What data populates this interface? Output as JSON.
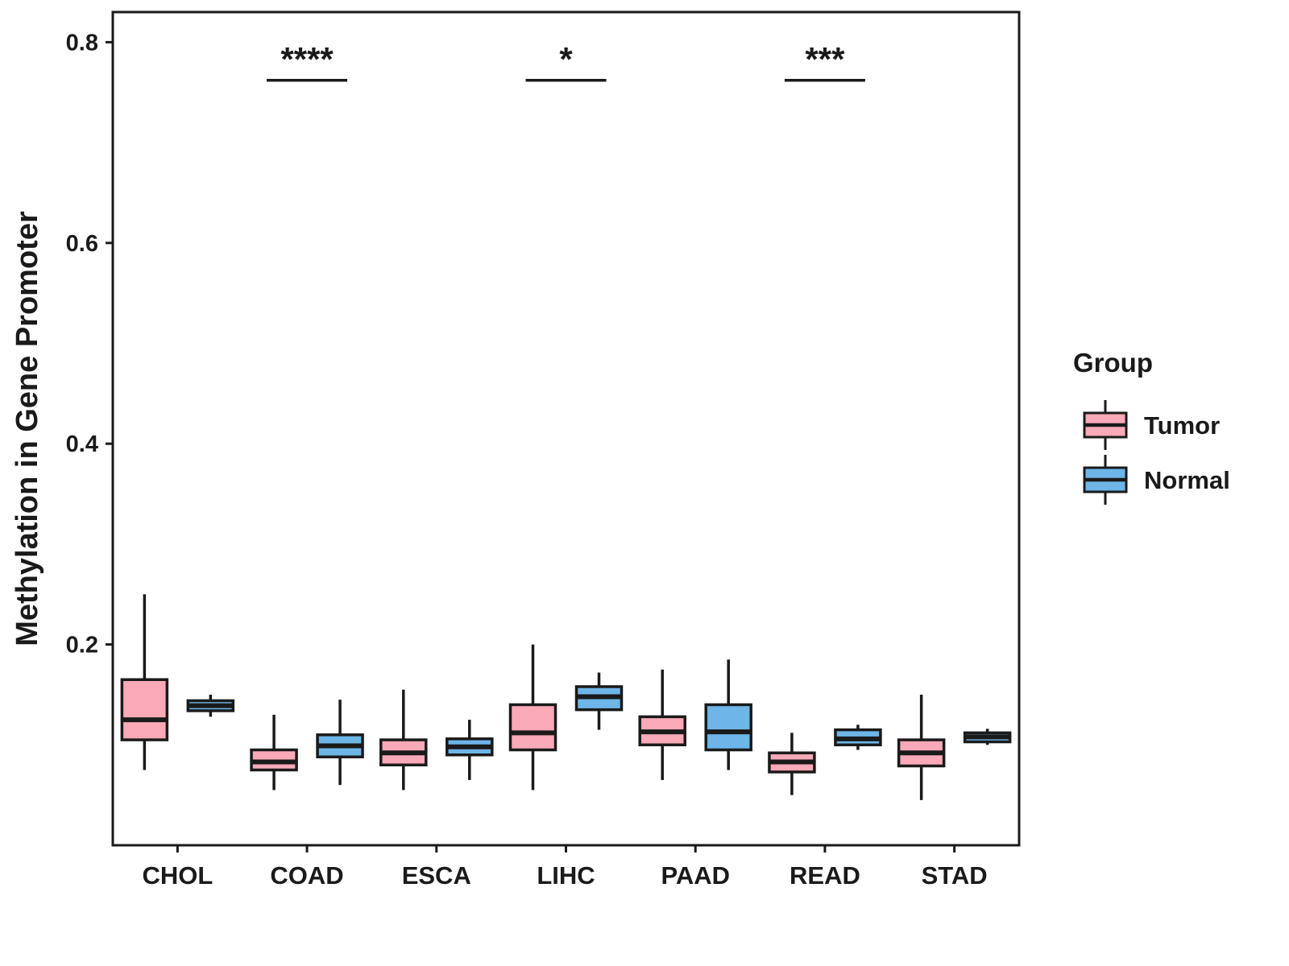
{
  "chart_data": {
    "type": "boxplot",
    "title": "",
    "xlabel": "",
    "ylabel": "Methylation in Gene Promoter",
    "ylim": [
      0.0,
      0.83
    ],
    "yticks": [
      0.2,
      0.4,
      0.6,
      0.8
    ],
    "grid": false,
    "panel_border": true,
    "categories": [
      "CHOL",
      "COAD",
      "ESCA",
      "LIHC",
      "PAAD",
      "READ",
      "STAD"
    ],
    "series": [
      {
        "name": "Tumor",
        "color": "#F9A9B8",
        "boxes": [
          {
            "low": 0.075,
            "q1": 0.105,
            "median": 0.125,
            "q3": 0.165,
            "high": 0.25
          },
          {
            "low": 0.055,
            "q1": 0.075,
            "median": 0.083,
            "q3": 0.095,
            "high": 0.13
          },
          {
            "low": 0.055,
            "q1": 0.08,
            "median": 0.092,
            "q3": 0.105,
            "high": 0.155
          },
          {
            "low": 0.055,
            "q1": 0.095,
            "median": 0.112,
            "q3": 0.14,
            "high": 0.2
          },
          {
            "low": 0.065,
            "q1": 0.1,
            "median": 0.113,
            "q3": 0.128,
            "high": 0.175
          },
          {
            "low": 0.05,
            "q1": 0.073,
            "median": 0.083,
            "q3": 0.092,
            "high": 0.112
          },
          {
            "low": 0.045,
            "q1": 0.079,
            "median": 0.092,
            "q3": 0.105,
            "high": 0.15
          }
        ]
      },
      {
        "name": "Normal",
        "color": "#6EB5E8",
        "boxes": [
          {
            "low": 0.128,
            "q1": 0.134,
            "median": 0.139,
            "q3": 0.144,
            "high": 0.15
          },
          {
            "low": 0.06,
            "q1": 0.088,
            "median": 0.099,
            "q3": 0.11,
            "high": 0.145
          },
          {
            "low": 0.065,
            "q1": 0.09,
            "median": 0.098,
            "q3": 0.106,
            "high": 0.125
          },
          {
            "low": 0.115,
            "q1": 0.135,
            "median": 0.148,
            "q3": 0.158,
            "high": 0.172
          },
          {
            "low": 0.075,
            "q1": 0.095,
            "median": 0.113,
            "q3": 0.14,
            "high": 0.185
          },
          {
            "low": 0.095,
            "q1": 0.1,
            "median": 0.106,
            "q3": 0.115,
            "high": 0.12
          },
          {
            "low": 0.1,
            "q1": 0.103,
            "median": 0.108,
            "q3": 0.112,
            "high": 0.116
          }
        ]
      }
    ],
    "significance": [
      {
        "category": "COAD",
        "label": "****",
        "y": 0.762
      },
      {
        "category": "LIHC",
        "label": "*",
        "y": 0.762
      },
      {
        "category": "READ",
        "label": "***",
        "y": 0.762
      }
    ],
    "legend": {
      "title": "Group",
      "position": "right",
      "entries": [
        {
          "label": "Tumor",
          "color": "#F9A9B8"
        },
        {
          "label": "Normal",
          "color": "#6EB5E8"
        }
      ]
    },
    "stroke_color": "#1a1a1a"
  }
}
